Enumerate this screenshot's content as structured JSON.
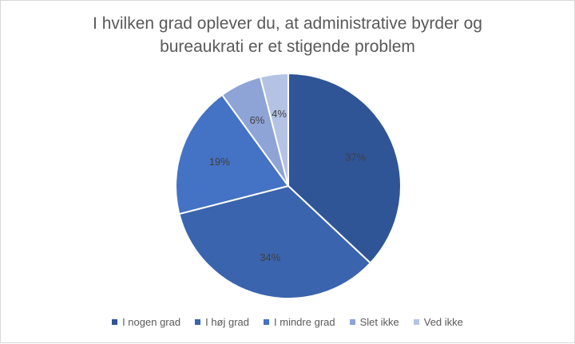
{
  "chart_data": {
    "type": "pie",
    "title": "I hvilken grad oplever du, at administrative byrder og bureaukrati er et stigende problem",
    "title_lines": [
      "I hvilken grad oplever du, at administrative byrder og",
      "bureaukrati er et stigende problem"
    ],
    "categories": [
      "I nogen grad",
      "I høj grad",
      "I mindre grad",
      "Slet ikke",
      "Ved ikke"
    ],
    "values": [
      37,
      34,
      19,
      6,
      4
    ],
    "labels": [
      "37%",
      "34%",
      "19%",
      "6%",
      "4%"
    ],
    "colors": [
      "#2f5597",
      "#3a64ae",
      "#4472c4",
      "#8ea4d6",
      "#b4c2e4"
    ],
    "legend_position": "bottom",
    "start_angle_deg": 0,
    "direction": "clockwise"
  }
}
